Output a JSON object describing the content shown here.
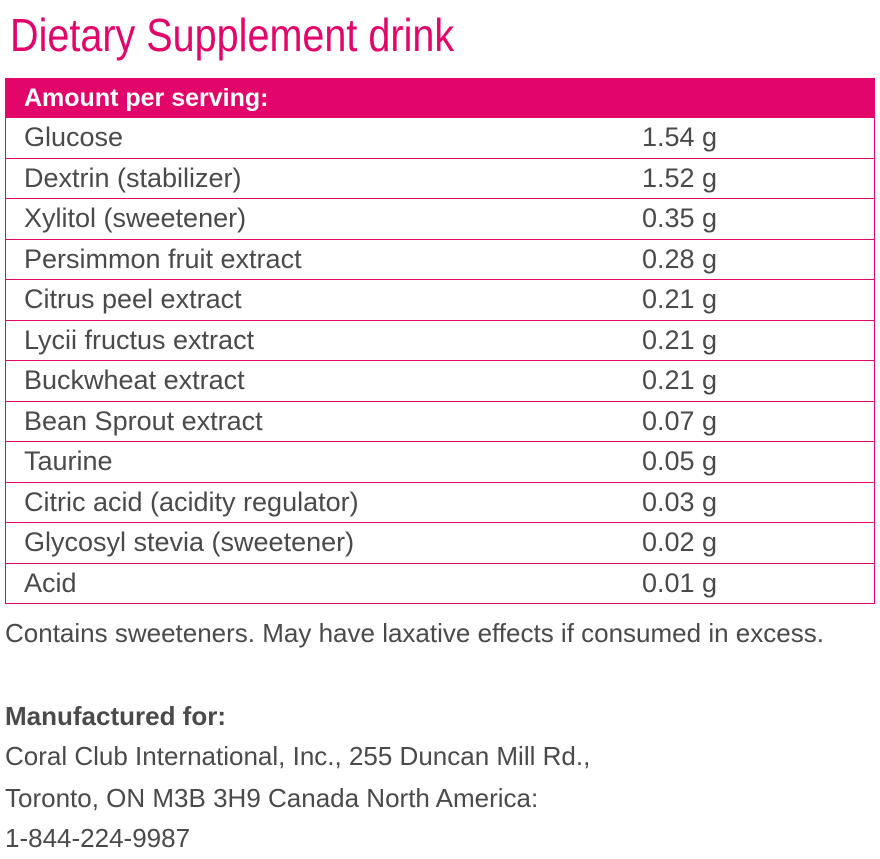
{
  "title": "Dietary Supplement drink",
  "table": {
    "header": "Amount per serving:",
    "rows": [
      [
        "Glucose",
        "1.54 g"
      ],
      [
        "Dextrin (stabilizer)",
        "1.52 g"
      ],
      [
        "Xylitol (sweetener)",
        "0.35 g"
      ],
      [
        "Persimmon fruit extract",
        "0.28 g"
      ],
      [
        "Citrus peel extract",
        "0.21 g"
      ],
      [
        "Lycii fructus extract",
        "0.21 g"
      ],
      [
        "Buckwheat extract",
        "0.21 g"
      ],
      [
        "Bean Sprout extract",
        "0.07 g"
      ],
      [
        "Taurine",
        "0.05 g"
      ],
      [
        "Citric acid (acidity regulator)",
        "0.03 g"
      ],
      [
        "Glycosyl stevia (sweetener)",
        "0.02 g"
      ],
      [
        "Acid",
        "0.01 g"
      ]
    ]
  },
  "note": "Contains sweeteners. May have laxative effects if consumed in excess.",
  "manufacturer": {
    "heading": "Manufactured for:",
    "lines": [
      "Coral Club International, Inc., 255 Duncan Mill Rd.,",
      "Toronto, ON  M3B 3H9 Canada North America:",
      "1-844-224-9987"
    ]
  }
}
